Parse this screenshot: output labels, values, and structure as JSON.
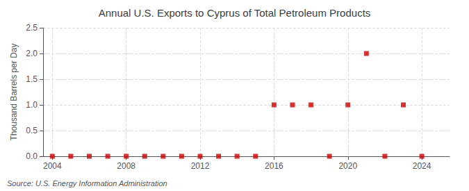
{
  "chart_data": {
    "type": "scatter",
    "title": "Annual U.S. Exports to Cyprus of Total Petroleum Products",
    "ylabel": "Thousand Barrels per Day",
    "annotations": [
      "Source: U.S. Energy Information Administration"
    ],
    "x": [
      2004,
      2005,
      2006,
      2007,
      2008,
      2009,
      2010,
      2011,
      2012,
      2013,
      2014,
      2015,
      2016,
      2017,
      2018,
      2019,
      2020,
      2021,
      2022,
      2023,
      2024
    ],
    "values": [
      0.0,
      0.0,
      0.0,
      0.0,
      0.0,
      0.0,
      0.0,
      0.0,
      0.0,
      0.0,
      0.0,
      0.0,
      1.0,
      1.0,
      1.0,
      0.0,
      1.0,
      2.0,
      0.0,
      1.0,
      0.0
    ],
    "color": "#cc0000",
    "marker": "square",
    "xlim": [
      2003.5,
      2025.5
    ],
    "xticks": [
      2004,
      2008,
      2012,
      2016,
      2020,
      2024
    ],
    "ylim": [
      0.0,
      2.5
    ],
    "yticks": [
      {
        "value": 0.0,
        "label": "0.0"
      },
      {
        "value": 0.5,
        "label": "0.5"
      },
      {
        "value": 1.0,
        "label": "1.0"
      },
      {
        "value": 1.5,
        "label": "1.5"
      },
      {
        "value": 2.0,
        "label": "2.0"
      },
      {
        "value": 2.5,
        "label": "2.5"
      }
    ],
    "grid": true
  }
}
